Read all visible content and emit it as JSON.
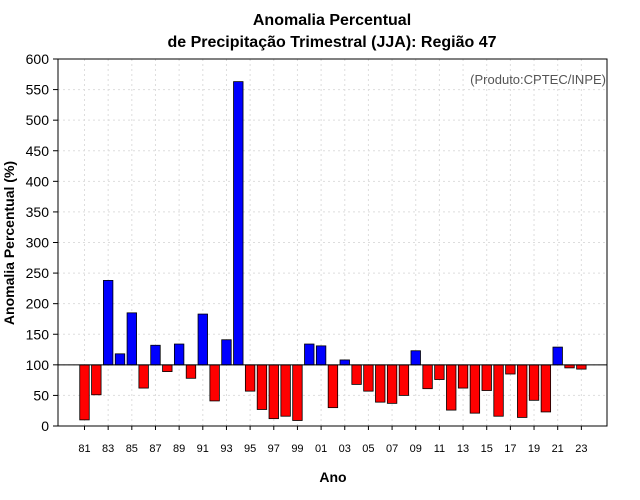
{
  "chart_data": {
    "type": "bar",
    "title_line1": "Anomalia Percentual",
    "title_line2": "de Precipitação Trimestral (JJA): Região 47",
    "xlabel": "Ano",
    "ylabel": "Anomalia Percentual (%)",
    "credit": "(Produto:CPTEC/INPE)",
    "ylim": [
      0,
      600
    ],
    "yticks": [
      0,
      50,
      100,
      150,
      200,
      250,
      300,
      350,
      400,
      450,
      500,
      550,
      600
    ],
    "baseline": 100,
    "grid": true,
    "categories": [
      "81",
      "82",
      "83",
      "84",
      "85",
      "86",
      "87",
      "88",
      "89",
      "90",
      "91",
      "92",
      "93",
      "94",
      "95",
      "96",
      "97",
      "98",
      "99",
      "00",
      "01",
      "02",
      "03",
      "04",
      "05",
      "06",
      "07",
      "08",
      "09",
      "10",
      "11",
      "12",
      "13",
      "14",
      "15",
      "16",
      "17",
      "18",
      "19",
      "20",
      "21",
      "22",
      "23"
    ],
    "xtick_labels": [
      "81",
      "83",
      "85",
      "87",
      "89",
      "91",
      "93",
      "95",
      "97",
      "99",
      "01",
      "03",
      "05",
      "07",
      "09",
      "11",
      "13",
      "15",
      "17",
      "19",
      "21",
      "23"
    ],
    "values": [
      10,
      51,
      238,
      118,
      185,
      62,
      132,
      89,
      134,
      78,
      183,
      41,
      141,
      563,
      57,
      27,
      12,
      16,
      9,
      134,
      131,
      30,
      108,
      68,
      57,
      39,
      37,
      50,
      123,
      61,
      76,
      26,
      62,
      21,
      58,
      16,
      85,
      14,
      42,
      23,
      129,
      95,
      93
    ],
    "colors": {
      "above": "#0000ff",
      "below": "#ff0000",
      "stroke": "#000000",
      "grid": "#dddddd"
    }
  }
}
